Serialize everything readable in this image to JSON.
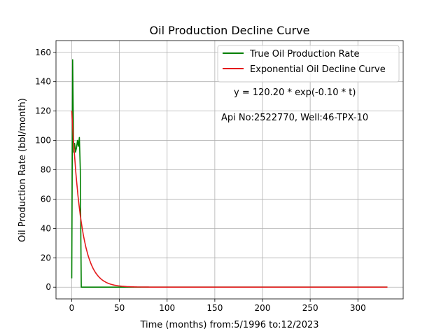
{
  "chart_data": {
    "type": "line",
    "title": "Oil Production Decline Curve",
    "xlabel": "Time (months) from:5/1996 to:12/2023",
    "ylabel": "Oil Production Rate (bbl/month)",
    "xlim": [
      -16.5,
      347.5
    ],
    "ylim": [
      -8,
      168
    ],
    "xticks": [
      0,
      50,
      100,
      150,
      200,
      250,
      300
    ],
    "yticks": [
      0,
      20,
      40,
      60,
      80,
      100,
      120,
      140,
      160
    ],
    "grid": true,
    "legend_position": "top-right",
    "annotations": [
      "y = 120.20 * exp(-0.10 * t)",
      "Api No:2522770, Well:46-TPX-10"
    ],
    "series": [
      {
        "name": "True Oil Production Rate",
        "color": "#008000",
        "x": [
          0,
          1,
          2,
          3,
          4,
          5,
          6,
          7,
          8,
          9,
          10,
          11,
          12,
          13,
          331
        ],
        "y": [
          6,
          155,
          92,
          98,
          92,
          95,
          100,
          96,
          102,
          80,
          0,
          0,
          0,
          0,
          0
        ]
      },
      {
        "name": "Exponential Oil Decline Curve",
        "color": "#e41a1c",
        "model": {
          "a": 120.2,
          "b": 0.1,
          "t_start": 0,
          "t_end": 331
        }
      }
    ]
  }
}
